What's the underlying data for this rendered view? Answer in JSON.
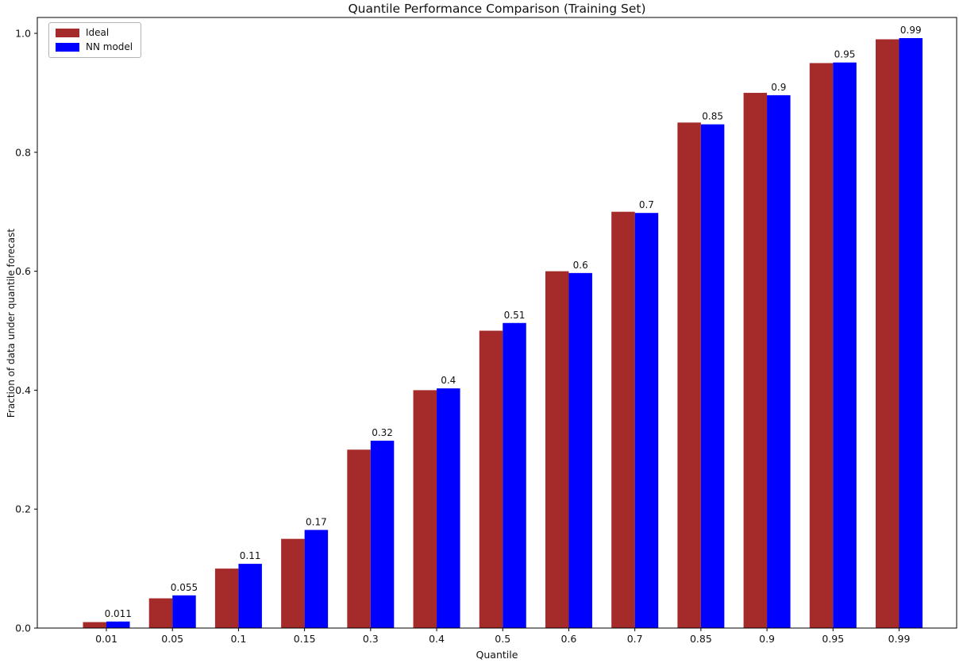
{
  "chart_data": {
    "type": "bar",
    "title": "Quantile Performance Comparison (Training Set)",
    "xlabel": "Quantile",
    "ylabel": "Fraction of data under quantile forecast",
    "categories": [
      "0.01",
      "0.05",
      "0.1",
      "0.15",
      "0.3",
      "0.4",
      "0.5",
      "0.6",
      "0.7",
      "0.85",
      "0.9",
      "0.95",
      "0.99"
    ],
    "series": [
      {
        "name": "Ideal",
        "color": "#A52A2A",
        "values": [
          0.01,
          0.05,
          0.1,
          0.15,
          0.3,
          0.4,
          0.5,
          0.6,
          0.7,
          0.85,
          0.9,
          0.95,
          0.99
        ]
      },
      {
        "name": "NN model",
        "color": "#0000FF",
        "values": [
          0.011,
          0.055,
          0.108,
          0.165,
          0.315,
          0.403,
          0.513,
          0.597,
          0.698,
          0.847,
          0.896,
          0.951,
          0.992
        ],
        "bar_labels": [
          "0.011",
          "0.055",
          "0.11",
          "0.17",
          "0.32",
          "0.4",
          "0.51",
          "0.6",
          "0.7",
          "0.85",
          "0.9",
          "0.95",
          "0.99"
        ]
      }
    ],
    "yticks": [
      "0.0",
      "0.2",
      "0.4",
      "0.6",
      "0.8",
      "1.0"
    ],
    "ylim": [
      0,
      1.03
    ],
    "grid": false,
    "legend_position": "upper-left",
    "spine_color": "#000000",
    "text_color": "#111111"
  }
}
